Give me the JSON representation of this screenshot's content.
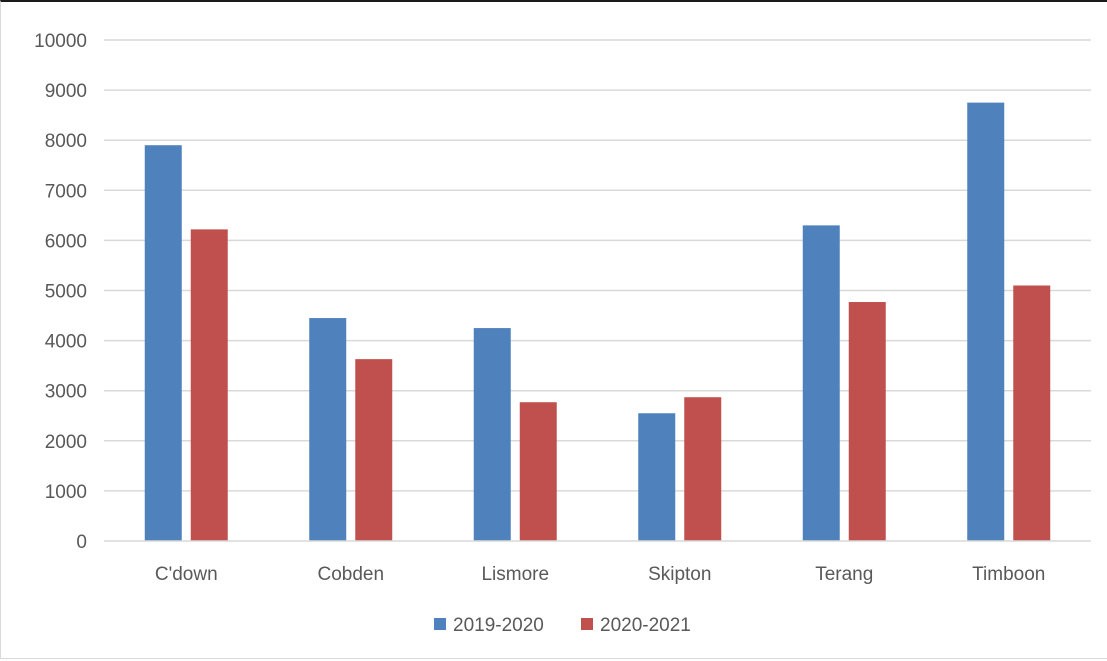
{
  "chart_data": {
    "type": "bar",
    "title": "",
    "xlabel": "",
    "ylabel": "",
    "categories": [
      "C'down",
      "Cobden",
      "Lismore",
      "Skipton",
      "Terang",
      "Timboon"
    ],
    "series": [
      {
        "name": "2019-2020",
        "values": [
          7900,
          4450,
          4250,
          2550,
          6300,
          8750
        ],
        "color": "#4f81bd"
      },
      {
        "name": "2020-2021",
        "values": [
          6220,
          3630,
          2770,
          2870,
          4770,
          5100
        ],
        "color": "#c0504d"
      }
    ],
    "ylim": [
      0,
      10000
    ],
    "yticks": [
      0,
      1000,
      2000,
      3000,
      4000,
      5000,
      6000,
      7000,
      8000,
      9000,
      10000
    ],
    "grid": true,
    "legend_position": "bottom"
  }
}
